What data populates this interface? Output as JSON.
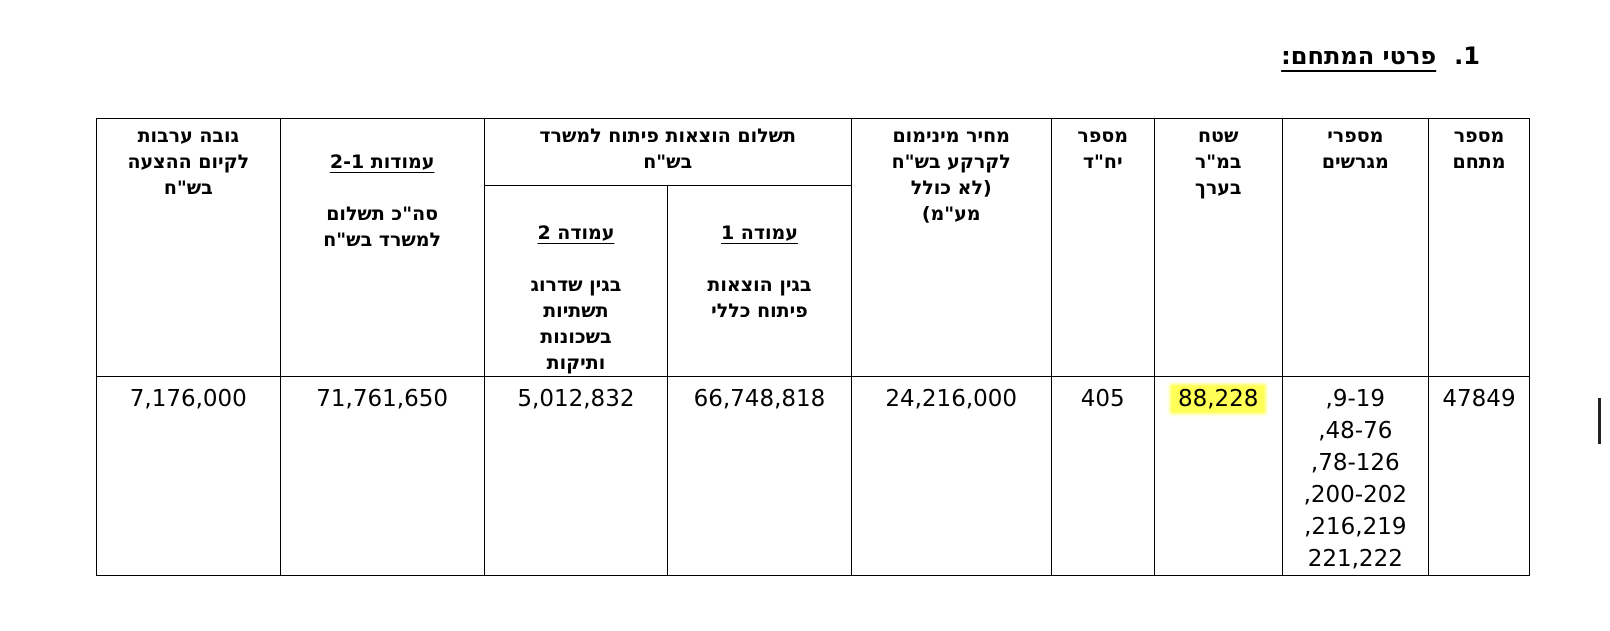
{
  "section": {
    "number": "1.",
    "title": "פרטי המתחם:"
  },
  "table": {
    "headers": {
      "area_num": "מספר\nמתחם",
      "plots": "מספרי\nמגרשים",
      "size": "שטח\nבמ\"ר\nבערך",
      "units": "מספר\nיח\"ד",
      "min_price": "מחיר מינימום\nלקרקע בש\"ח\n(לא כולל\nמע\"מ)",
      "dev_group": "תשלום הוצאות פיתוח למשרד\nבש\"ח",
      "col1_title": "עמודה 1",
      "col1_desc": "בגין הוצאות\nפיתוח כללי",
      "col2_title": "עמודה 2",
      "col2_desc": "בגין שדרוג\nתשתיות\nבשכונות\nותיקות",
      "total_title": "עמודות 2-1",
      "total_desc": "סה\"כ תשלום\nלמשרד בש\"ח",
      "guarantee": "גובה ערבות\nלקיום ההצעה\nבש\"ח"
    },
    "row": {
      "area_num": "47849",
      "plots": "9-19,\n48-76,\n78-126,\n200-202,\n216,219,\n221,222",
      "size": "88,228",
      "units": "405",
      "min_price": "24,216,000",
      "col1": "66,748,818",
      "col2": "5,012,832",
      "total": "71,761,650",
      "guarantee": "7,176,000"
    },
    "highlight_color": "#ffff55"
  }
}
